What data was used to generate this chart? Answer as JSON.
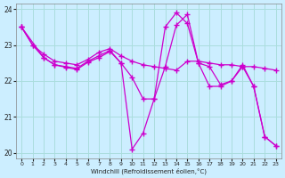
{
  "xlabel": "Windchill (Refroidissement éolien,°C)",
  "bg_color": "#cceeff",
  "grid_color": "#aadddd",
  "line_color": "#cc00cc",
  "xlim": [
    -0.5,
    23.5
  ],
  "ylim": [
    19.85,
    24.15
  ],
  "yticks": [
    20,
    21,
    22,
    23,
    24
  ],
  "xticks": [
    0,
    1,
    2,
    3,
    4,
    5,
    6,
    7,
    8,
    9,
    10,
    11,
    12,
    13,
    14,
    15,
    16,
    17,
    18,
    19,
    20,
    21,
    22,
    23
  ],
  "line1_x": [
    0,
    1,
    2,
    3,
    4,
    5,
    6,
    7,
    8,
    9,
    10,
    11,
    12,
    13,
    14,
    15,
    16,
    17,
    18,
    19,
    20,
    21,
    22,
    23
  ],
  "line1_y": [
    23.5,
    23.0,
    22.75,
    22.55,
    22.5,
    22.45,
    22.6,
    22.8,
    22.9,
    22.7,
    22.55,
    22.45,
    22.4,
    22.35,
    22.3,
    22.55,
    22.55,
    22.5,
    22.45,
    22.45,
    22.4,
    22.4,
    22.35,
    22.3
  ],
  "line2_x": [
    0,
    1,
    2,
    3,
    4,
    5,
    6,
    7,
    8,
    9,
    10,
    11,
    12,
    13,
    14,
    15,
    16,
    17,
    18,
    19,
    20,
    21,
    22,
    23
  ],
  "line2_y": [
    23.5,
    23.0,
    22.65,
    22.45,
    22.4,
    22.35,
    22.55,
    22.7,
    22.85,
    22.5,
    22.1,
    21.5,
    21.5,
    22.4,
    23.55,
    23.85,
    22.5,
    21.85,
    21.85,
    22.0,
    22.4,
    21.85,
    20.45,
    20.2
  ],
  "line3_x": [
    0,
    2,
    3,
    4,
    5,
    6,
    7,
    8,
    9,
    10,
    11,
    12,
    13,
    14,
    15,
    16,
    17,
    18,
    19,
    20,
    21,
    22,
    23
  ],
  "line3_y": [
    23.5,
    22.65,
    22.45,
    22.38,
    22.32,
    22.52,
    22.65,
    22.82,
    22.5,
    20.1,
    20.55,
    21.5,
    23.5,
    23.9,
    23.6,
    22.5,
    22.4,
    21.9,
    22.0,
    22.45,
    21.85,
    20.45,
    20.2
  ]
}
